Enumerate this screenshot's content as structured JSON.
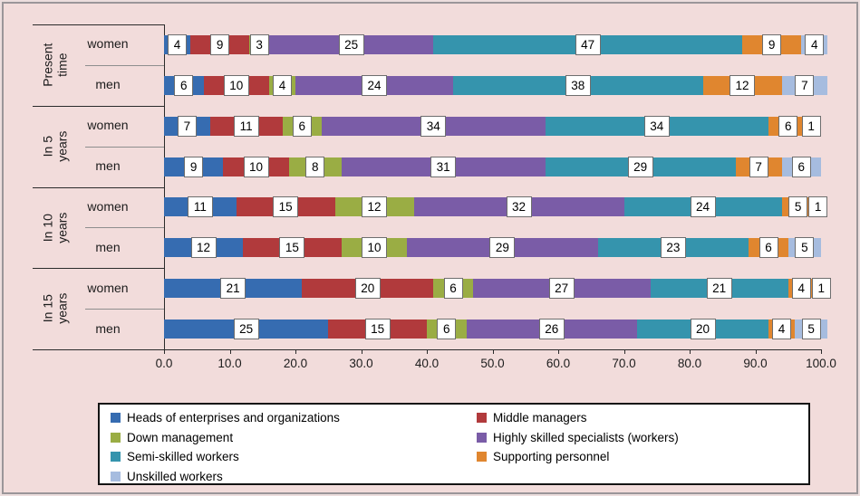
{
  "chart_data": {
    "type": "bar",
    "stacked": true,
    "orientation": "horizontal",
    "title": "",
    "xlabel": "",
    "ylabel": "",
    "xlim": [
      0,
      100
    ],
    "x_ticks": [
      "0.0",
      "10.0",
      "20.0",
      "30.0",
      "40.0",
      "50.0",
      "60.0",
      "70.0",
      "80.0",
      "90.0",
      "100.0"
    ],
    "grid": false,
    "legend_position": "bottom",
    "background_color": "#f2dcdb",
    "groups": [
      {
        "label": "Present\ntime"
      },
      {
        "label": "In 5 years"
      },
      {
        "label": "In 10 years"
      },
      {
        "label": "In 15 years"
      }
    ],
    "series": [
      {
        "name": "Heads of enterprises and organizations",
        "color": "#366cb1"
      },
      {
        "name": "Middle managers",
        "color": "#b13a3c"
      },
      {
        "name": "Down management",
        "color": "#9aad44"
      },
      {
        "name": "Highly skilled specialists (workers)",
        "color": "#7a5ca7"
      },
      {
        "name": "Semi-skilled workers",
        "color": "#3594ad"
      },
      {
        "name": "Supporting personnel",
        "color": "#e0862f"
      },
      {
        "name": "Unskilled workers",
        "color": "#a6bcdf"
      }
    ],
    "rows": [
      {
        "group": "Present time",
        "category": "women",
        "values": [
          4,
          9,
          3,
          25,
          47,
          9,
          4
        ]
      },
      {
        "group": "Present time",
        "category": "men",
        "values": [
          6,
          10,
          4,
          24,
          38,
          12,
          7
        ]
      },
      {
        "group": "In 5 years",
        "category": "women",
        "values": [
          7,
          11,
          6,
          34,
          34,
          6,
          1
        ]
      },
      {
        "group": "In 5 years",
        "category": "men",
        "values": [
          9,
          10,
          8,
          31,
          29,
          7,
          6
        ]
      },
      {
        "group": "In 10 years",
        "category": "women",
        "values": [
          11,
          15,
          12,
          32,
          24,
          5,
          1
        ]
      },
      {
        "group": "In 10 years",
        "category": "men",
        "values": [
          12,
          15,
          10,
          29,
          23,
          6,
          5
        ]
      },
      {
        "group": "In 15 years",
        "category": "women",
        "values": [
          21,
          20,
          6,
          27,
          21,
          4,
          1
        ]
      },
      {
        "group": "In 15 years",
        "category": "men",
        "values": [
          25,
          15,
          6,
          26,
          20,
          4,
          5
        ]
      }
    ]
  }
}
